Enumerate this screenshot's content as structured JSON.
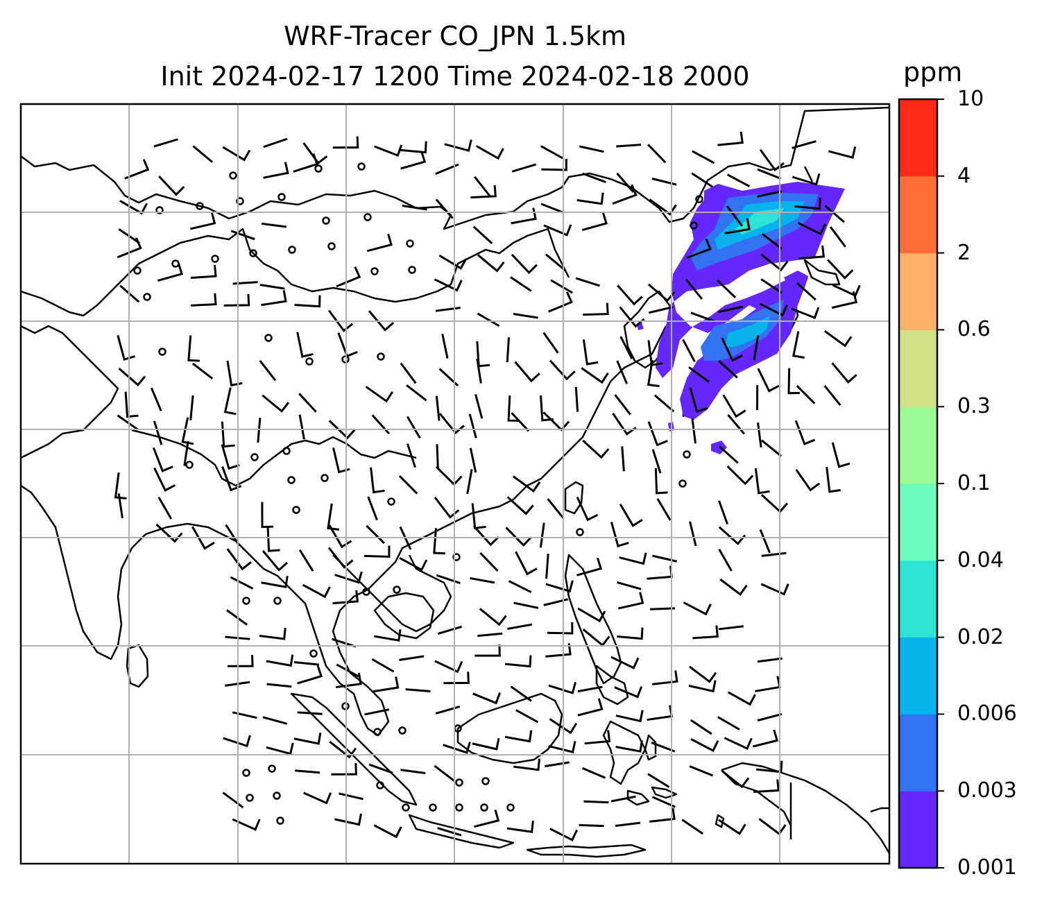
{
  "title": {
    "line1": "WRF-Tracer CO_JPN 1.5km",
    "line2": "Init 2024-02-17 1200 Time 2024-02-18 2000"
  },
  "colorbar": {
    "unit": "ppm",
    "ticks": [
      "0.001",
      "0.003",
      "0.006",
      "0.02",
      "0.04",
      "0.1",
      "0.3",
      "0.6",
      "2",
      "4",
      "10"
    ],
    "colors": [
      "#6428fa",
      "#3173f2",
      "#06b3ec",
      "#2ee2d4",
      "#6bfbbc",
      "#9afa94",
      "#d1e087",
      "#fdb06a",
      "#ff6e3a",
      "#ff2a17"
    ]
  },
  "map": {
    "grid_lines": true,
    "plume_colors": [
      "#6428fa",
      "#3173f2",
      "#06b3ec",
      "#2ee2d4"
    ]
  }
}
